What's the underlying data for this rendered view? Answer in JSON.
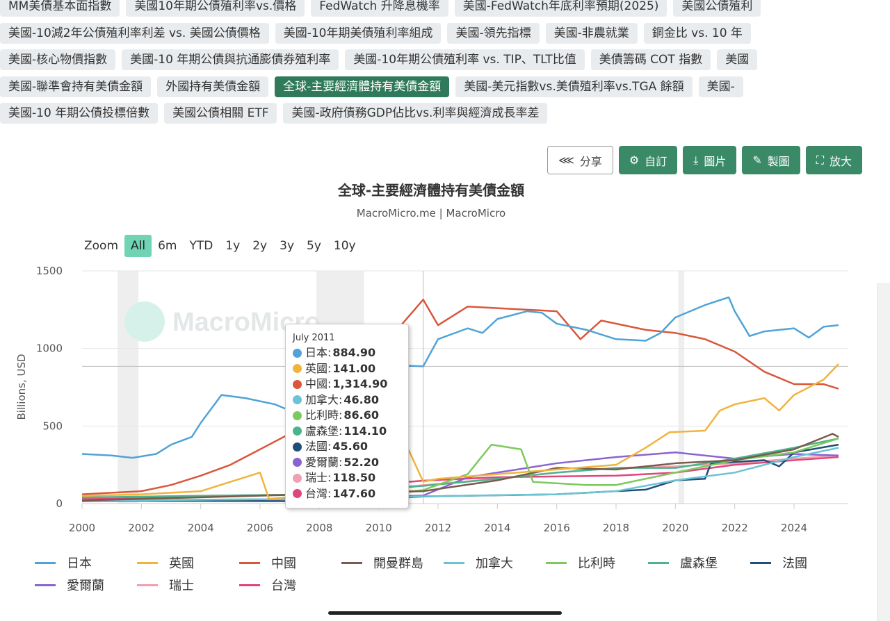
{
  "tags": [
    [
      "MM美債基本面指數",
      "美國10年期公債殖利率vs.價格",
      "FedWatch 升降息機率",
      "美國-FedWatch年底利率預期(2025)",
      "美國公債殖利"
    ],
    [
      "美國-10減2年公債殖利率利差 vs. 美國公債價格",
      "美國-10年期美債殖利率組成",
      "美國-領先指標",
      "美國-非農就業",
      "銅金比 vs. 10 年"
    ],
    [
      "美國-核心物價指數",
      "美國-10 年期公債與抗通膨債券殖利率",
      "美國-10年期公債殖利率 vs. TIP、TLT比值",
      "美債籌碼 COT 指數",
      "美國"
    ],
    [
      "美國-聯準會持有美債金額",
      "外國持有美債金額",
      "全球-主要經濟體持有美債金額",
      "美國-美元指數vs.美債殖利率vs.TGA 餘額",
      "美國-"
    ],
    [
      "美國-10 年期公債投標倍數",
      "美國公債相關 ETF",
      "美國-政府債務GDP佔比vs.利率與經濟成長率差"
    ]
  ],
  "active_tag": "全球-主要經濟體持有美債金額",
  "toolbar": [
    {
      "label": "分享",
      "icon": "share-icon"
    },
    {
      "label": "自訂",
      "icon": "gear-icon"
    },
    {
      "label": "圖片",
      "icon": "download-icon"
    },
    {
      "label": "製圖",
      "icon": "pencil-icon"
    },
    {
      "label": "放大",
      "icon": "expand-icon"
    }
  ],
  "zoom": {
    "label": "Zoom",
    "options": [
      "All",
      "6m",
      "YTD",
      "1y",
      "2y",
      "3y",
      "5y",
      "10y"
    ],
    "selected": "All"
  },
  "watermark": "MacroMicro",
  "tooltip": {
    "date": "July 2011",
    "rows": [
      [
        "日本",
        "884.90"
      ],
      [
        "英國",
        "141.00"
      ],
      [
        "中國",
        "1,314.90"
      ],
      [
        "加拿大",
        "46.80"
      ],
      [
        "比利時",
        "86.60"
      ],
      [
        "盧森堡",
        "114.10"
      ],
      [
        "法國",
        "45.60"
      ],
      [
        "愛爾蘭",
        "52.20"
      ],
      [
        "瑞士",
        "118.50"
      ],
      [
        "台灣",
        "147.60"
      ]
    ]
  },
  "chart_data": {
    "type": "line",
    "title": "全球-主要經濟體持有美債金額",
    "subtitle": "MacroMicro.me | MacroMicro",
    "ylabel": "Billions, USD",
    "xlim": [
      2000,
      2025.6
    ],
    "ylim": [
      0,
      1500
    ],
    "xticks": [
      2000,
      2002,
      2004,
      2006,
      2008,
      2010,
      2012,
      2014,
      2016,
      2018,
      2020,
      2022,
      2024
    ],
    "yticks": [
      0,
      500,
      1000,
      1500
    ],
    "grid": true,
    "legend": "bottom",
    "recession_bands": [
      [
        2001.2,
        2001.9
      ],
      [
        2007.9,
        2009.5
      ],
      [
        2020.1,
        2020.3
      ]
    ],
    "crosshair": {
      "x": 2011.5,
      "y": 884.9
    },
    "series": [
      {
        "name": "日本",
        "color": "#4fa3d8",
        "points": [
          [
            2000,
            320
          ],
          [
            2001,
            310
          ],
          [
            2001.7,
            295
          ],
          [
            2002.5,
            320
          ],
          [
            2003,
            380
          ],
          [
            2003.7,
            430
          ],
          [
            2004,
            520
          ],
          [
            2004.7,
            700
          ],
          [
            2005.5,
            680
          ],
          [
            2006.5,
            640
          ],
          [
            2007,
            600
          ],
          [
            2008,
            600
          ],
          [
            2009,
            750
          ],
          [
            2010,
            830
          ],
          [
            2010.8,
            890
          ],
          [
            2011.5,
            885
          ],
          [
            2012,
            1060
          ],
          [
            2013,
            1130
          ],
          [
            2013.5,
            1100
          ],
          [
            2014,
            1190
          ],
          [
            2015,
            1240
          ],
          [
            2015.5,
            1230
          ],
          [
            2016,
            1160
          ],
          [
            2017,
            1120
          ],
          [
            2018,
            1060
          ],
          [
            2019,
            1050
          ],
          [
            2019.5,
            1100
          ],
          [
            2020,
            1200
          ],
          [
            2021,
            1280
          ],
          [
            2021.8,
            1330
          ],
          [
            2022,
            1240
          ],
          [
            2022.5,
            1080
          ],
          [
            2023,
            1110
          ],
          [
            2024,
            1130
          ],
          [
            2024.5,
            1070
          ],
          [
            2025,
            1140
          ],
          [
            2025.5,
            1150
          ]
        ]
      },
      {
        "name": "英國",
        "color": "#f0b43c",
        "points": [
          [
            2000,
            50
          ],
          [
            2002,
            60
          ],
          [
            2004,
            80
          ],
          [
            2005,
            140
          ],
          [
            2006,
            200
          ],
          [
            2006.3,
            30
          ],
          [
            2008,
            60
          ],
          [
            2009,
            150
          ],
          [
            2010,
            300
          ],
          [
            2011,
            350
          ],
          [
            2011.5,
            141
          ],
          [
            2012,
            160
          ],
          [
            2014,
            190
          ],
          [
            2016,
            220
          ],
          [
            2018,
            250
          ],
          [
            2019,
            360
          ],
          [
            2019.8,
            460
          ],
          [
            2021,
            470
          ],
          [
            2021.5,
            600
          ],
          [
            2022,
            640
          ],
          [
            2023,
            680
          ],
          [
            2023.5,
            600
          ],
          [
            2024,
            700
          ],
          [
            2025,
            800
          ],
          [
            2025.5,
            900
          ]
        ]
      },
      {
        "name": "中國",
        "color": "#d9573b",
        "points": [
          [
            2000,
            60
          ],
          [
            2002,
            80
          ],
          [
            2003,
            120
          ],
          [
            2004,
            180
          ],
          [
            2005,
            250
          ],
          [
            2006,
            350
          ],
          [
            2007,
            450
          ],
          [
            2008,
            530
          ],
          [
            2009,
            800
          ],
          [
            2010,
            900
          ],
          [
            2010.8,
            1160
          ],
          [
            2011.5,
            1315
          ],
          [
            2012,
            1150
          ],
          [
            2013,
            1270
          ],
          [
            2014,
            1260
          ],
          [
            2015,
            1250
          ],
          [
            2016,
            1240
          ],
          [
            2016.8,
            1060
          ],
          [
            2017.5,
            1180
          ],
          [
            2019,
            1120
          ],
          [
            2020,
            1100
          ],
          [
            2021,
            1060
          ],
          [
            2022,
            980
          ],
          [
            2023,
            850
          ],
          [
            2024,
            770
          ],
          [
            2025,
            770
          ],
          [
            2025.5,
            740
          ]
        ]
      },
      {
        "name": "開曼群島",
        "color": "#7a5a4a",
        "points": [
          [
            2000,
            20
          ],
          [
            2011.5,
            80
          ],
          [
            2014,
            150
          ],
          [
            2016,
            230
          ],
          [
            2018,
            220
          ],
          [
            2020,
            260
          ],
          [
            2022,
            280
          ],
          [
            2024,
            350
          ],
          [
            2025.3,
            450
          ],
          [
            2025.5,
            430
          ]
        ]
      },
      {
        "name": "加拿大",
        "color": "#6cc3d5",
        "points": [
          [
            2000,
            20
          ],
          [
            2008,
            30
          ],
          [
            2011.5,
            47
          ],
          [
            2016,
            60
          ],
          [
            2018,
            80
          ],
          [
            2020,
            150
          ],
          [
            2022,
            200
          ],
          [
            2024,
            300
          ],
          [
            2025.5,
            360
          ]
        ]
      },
      {
        "name": "比利時",
        "color": "#7dc95e",
        "points": [
          [
            2000,
            20
          ],
          [
            2008,
            30
          ],
          [
            2011.5,
            87
          ],
          [
            2013,
            190
          ],
          [
            2013.8,
            380
          ],
          [
            2014.8,
            350
          ],
          [
            2015.2,
            140
          ],
          [
            2017,
            120
          ],
          [
            2018,
            120
          ],
          [
            2020,
            200
          ],
          [
            2022,
            280
          ],
          [
            2024,
            330
          ],
          [
            2025.5,
            420
          ]
        ]
      },
      {
        "name": "盧森堡",
        "color": "#4db38e",
        "points": [
          [
            2000,
            40
          ],
          [
            2008,
            60
          ],
          [
            2011.5,
            114
          ],
          [
            2014,
            160
          ],
          [
            2016,
            200
          ],
          [
            2018,
            230
          ],
          [
            2020,
            230
          ],
          [
            2022,
            290
          ],
          [
            2024,
            360
          ],
          [
            2025.5,
            420
          ]
        ]
      },
      {
        "name": "法國",
        "color": "#1f4e79",
        "points": [
          [
            2000,
            20
          ],
          [
            2008,
            15
          ],
          [
            2011.5,
            46
          ],
          [
            2016,
            60
          ],
          [
            2019,
            90
          ],
          [
            2020,
            150
          ],
          [
            2021,
            160
          ],
          [
            2021.2,
            260
          ],
          [
            2023,
            280
          ],
          [
            2023.5,
            240
          ],
          [
            2024,
            330
          ],
          [
            2025.5,
            380
          ]
        ]
      },
      {
        "name": "愛爾蘭",
        "color": "#8a63d2",
        "points": [
          [
            2000,
            15
          ],
          [
            2008,
            30
          ],
          [
            2011.5,
            52
          ],
          [
            2013,
            170
          ],
          [
            2016,
            260
          ],
          [
            2018,
            300
          ],
          [
            2020,
            330
          ],
          [
            2022,
            290
          ],
          [
            2024,
            320
          ],
          [
            2025.5,
            310
          ]
        ]
      },
      {
        "name": "瑞士",
        "color": "#f0a0b0",
        "points": [
          [
            2000,
            40
          ],
          [
            2008,
            60
          ],
          [
            2011.5,
            119
          ],
          [
            2014,
            160
          ],
          [
            2016,
            200
          ],
          [
            2018,
            230
          ],
          [
            2020,
            240
          ],
          [
            2022,
            260
          ],
          [
            2024,
            290
          ],
          [
            2025.5,
            310
          ]
        ]
      },
      {
        "name": "台灣",
        "color": "#e0457b",
        "points": [
          [
            2000,
            30
          ],
          [
            2004,
            50
          ],
          [
            2008,
            60
          ],
          [
            2009,
            110
          ],
          [
            2011.5,
            148
          ],
          [
            2014,
            170
          ],
          [
            2018,
            180
          ],
          [
            2020,
            200
          ],
          [
            2022,
            250
          ],
          [
            2024,
            280
          ],
          [
            2025.5,
            300
          ]
        ]
      }
    ]
  }
}
